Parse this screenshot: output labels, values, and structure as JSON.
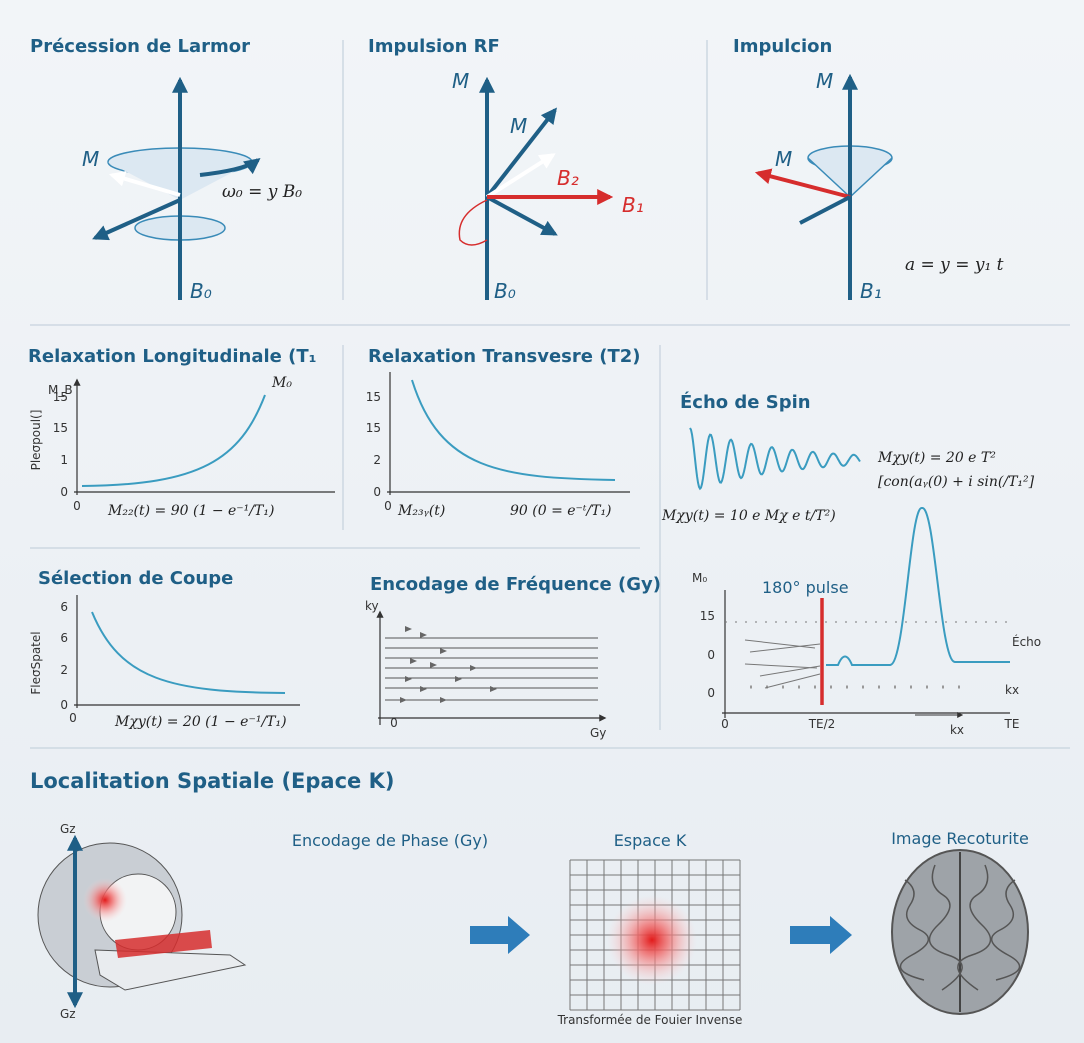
{
  "larmor": {
    "title": "Précession de Larmor",
    "m": "M",
    "equation": "ω₀ = y B₀",
    "b0": "B₀"
  },
  "rf": {
    "title": "Impulsion RF",
    "m_axis": "M",
    "m_vector": "M",
    "b2": "B₂",
    "b1": "B₁",
    "b0": "B₀"
  },
  "impulcion": {
    "title": "Impulcion",
    "m_axis": "M",
    "m_vector": "M",
    "equation": "a = y = y₁   t",
    "b1": "B₁"
  },
  "longitudinal": {
    "title": "Relaxation Longitudinale (T₁",
    "y_label": "M_B",
    "axis_title": "Pleσpoul(]",
    "yticks": [
      "15",
      "15",
      "1",
      "0"
    ],
    "x_origin": "0",
    "curve_label": "M₀",
    "formula": "M₂₂(t) = 90 (1 − e⁻¹/T₁)"
  },
  "transverse": {
    "title": "Relaxation Transvesre (T2)",
    "yticks": [
      "15",
      "15",
      "2",
      "0"
    ],
    "x_origin": "0",
    "formula_left": "M₂₃ᵧ(t)",
    "formula_right": "90 (0 = e⁻ᵗ/T₁)"
  },
  "slice": {
    "title": "Sélection de Coupe",
    "axis_title": "FleσSpatel",
    "yticks": [
      "6",
      "6",
      "2",
      "0"
    ],
    "x_origin": "0",
    "formula": "Mχy(t) = 20 (1 − e⁻¹/T₁)"
  },
  "frequency": {
    "title": "Encodage de Fréquence (Gy)",
    "y_label": "ky",
    "x_origin": "0",
    "x_label": "Gy"
  },
  "echo": {
    "title": "Écho de Spin",
    "formula_1": "Mχy(t) = 20 e T²",
    "formula_2": "[con(aᵧ(0) + i sin(/T₁²]",
    "formula_3": "Mχy(t) = 10 e Mχ e t/T²)",
    "y_label": "M₀",
    "pulse": "180° pulse",
    "yticks": [
      "15",
      "0",
      "0"
    ],
    "echo_label": "Écho",
    "kx_right": "kx",
    "xticks": [
      "0",
      "TE/2",
      "kx",
      "TE"
    ]
  },
  "spatial": {
    "title": "Localitation Spatiale (Epace K)",
    "gz_top": "Gᴢ",
    "gz_bottom": "Gᴢ",
    "phase": "Encodage de Phase (Gy)",
    "kspace": "Espace K",
    "transform": "Transformée de Fouier Invense",
    "image": "Image Recoturite"
  }
}
